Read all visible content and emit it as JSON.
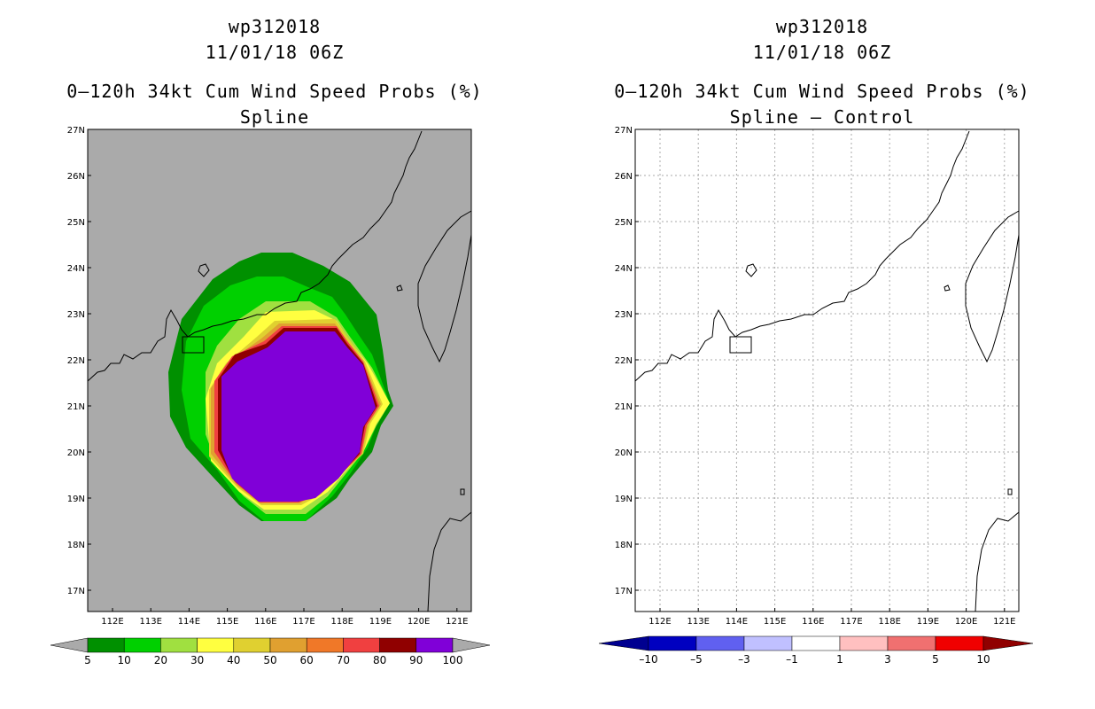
{
  "left": {
    "title_lines": [
      "wp312018",
      "11/01/18 06Z",
      "0–120h 34kt Cum Wind Speed Probs (%)",
      "Spline"
    ],
    "background_color": "#aaaaaa",
    "lat_labels": [
      "27N",
      "26N",
      "25N",
      "24N",
      "23N",
      "22N",
      "21N",
      "20N",
      "19N",
      "18N",
      "17N"
    ],
    "lon_labels": [
      "112E",
      "113E",
      "114E",
      "115E",
      "116E",
      "117E",
      "118E",
      "119E",
      "120E",
      "121E"
    ],
    "colorbar": {
      "colors": [
        "#009000",
        "#00d000",
        "#a0e040",
        "#ffff40",
        "#e0d030",
        "#e0a030",
        "#f07828",
        "#f04040",
        "#900000",
        "#8000d8"
      ],
      "labels": [
        "5",
        "10",
        "20",
        "30",
        "40",
        "50",
        "60",
        "70",
        "80",
        "90",
        "100"
      ]
    }
  },
  "right": {
    "title_lines": [
      "wp312018",
      "11/01/18 06Z",
      "0–120h 34kt Cum Wind Speed Probs (%)",
      "Spline – Control"
    ],
    "background_color": "#ffffff",
    "lat_labels": [
      "27N",
      "26N",
      "25N",
      "24N",
      "23N",
      "22N",
      "21N",
      "20N",
      "19N",
      "18N",
      "17N"
    ],
    "lon_labels": [
      "112E",
      "113E",
      "114E",
      "115E",
      "116E",
      "117E",
      "118E",
      "119E",
      "120E",
      "121E"
    ],
    "colorbar": {
      "colors": [
        "#0000c0",
        "#6060f0",
        "#c0c0ff",
        "#ffffff",
        "#ffc0c0",
        "#f07070",
        "#f00000"
      ],
      "end_colors": [
        "#000090",
        "#900000"
      ],
      "labels": [
        "–10",
        "–5",
        "–3",
        "–1",
        "1",
        "3",
        "5",
        "10"
      ]
    }
  }
}
